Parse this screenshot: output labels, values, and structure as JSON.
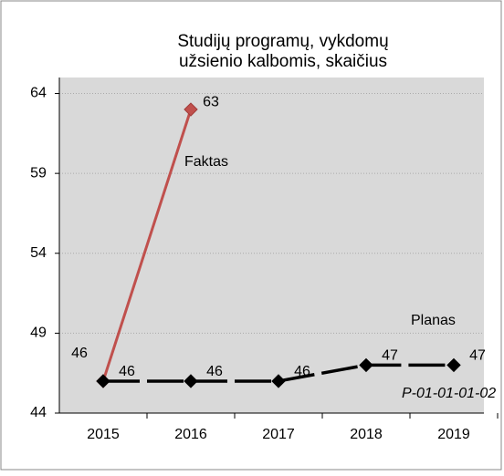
{
  "chart_data": {
    "type": "line",
    "title": "Studijų programų, vykdomų užsienio kalbomis, skaičius",
    "categories": [
      "2015",
      "2016",
      "2017",
      "2018",
      "2019"
    ],
    "series": [
      {
        "name": "Faktas",
        "color": "#c0504d",
        "values": [
          46,
          63,
          null,
          null,
          null
        ]
      },
      {
        "name": "Planas",
        "color": "#000000",
        "values": [
          46,
          46,
          46,
          47,
          47
        ]
      }
    ],
    "ylim": [
      44,
      65
    ],
    "yticks": [
      44,
      49,
      54,
      59,
      64
    ],
    "grid": true,
    "annotations": [
      "P-01-01-01-02"
    ]
  }
}
